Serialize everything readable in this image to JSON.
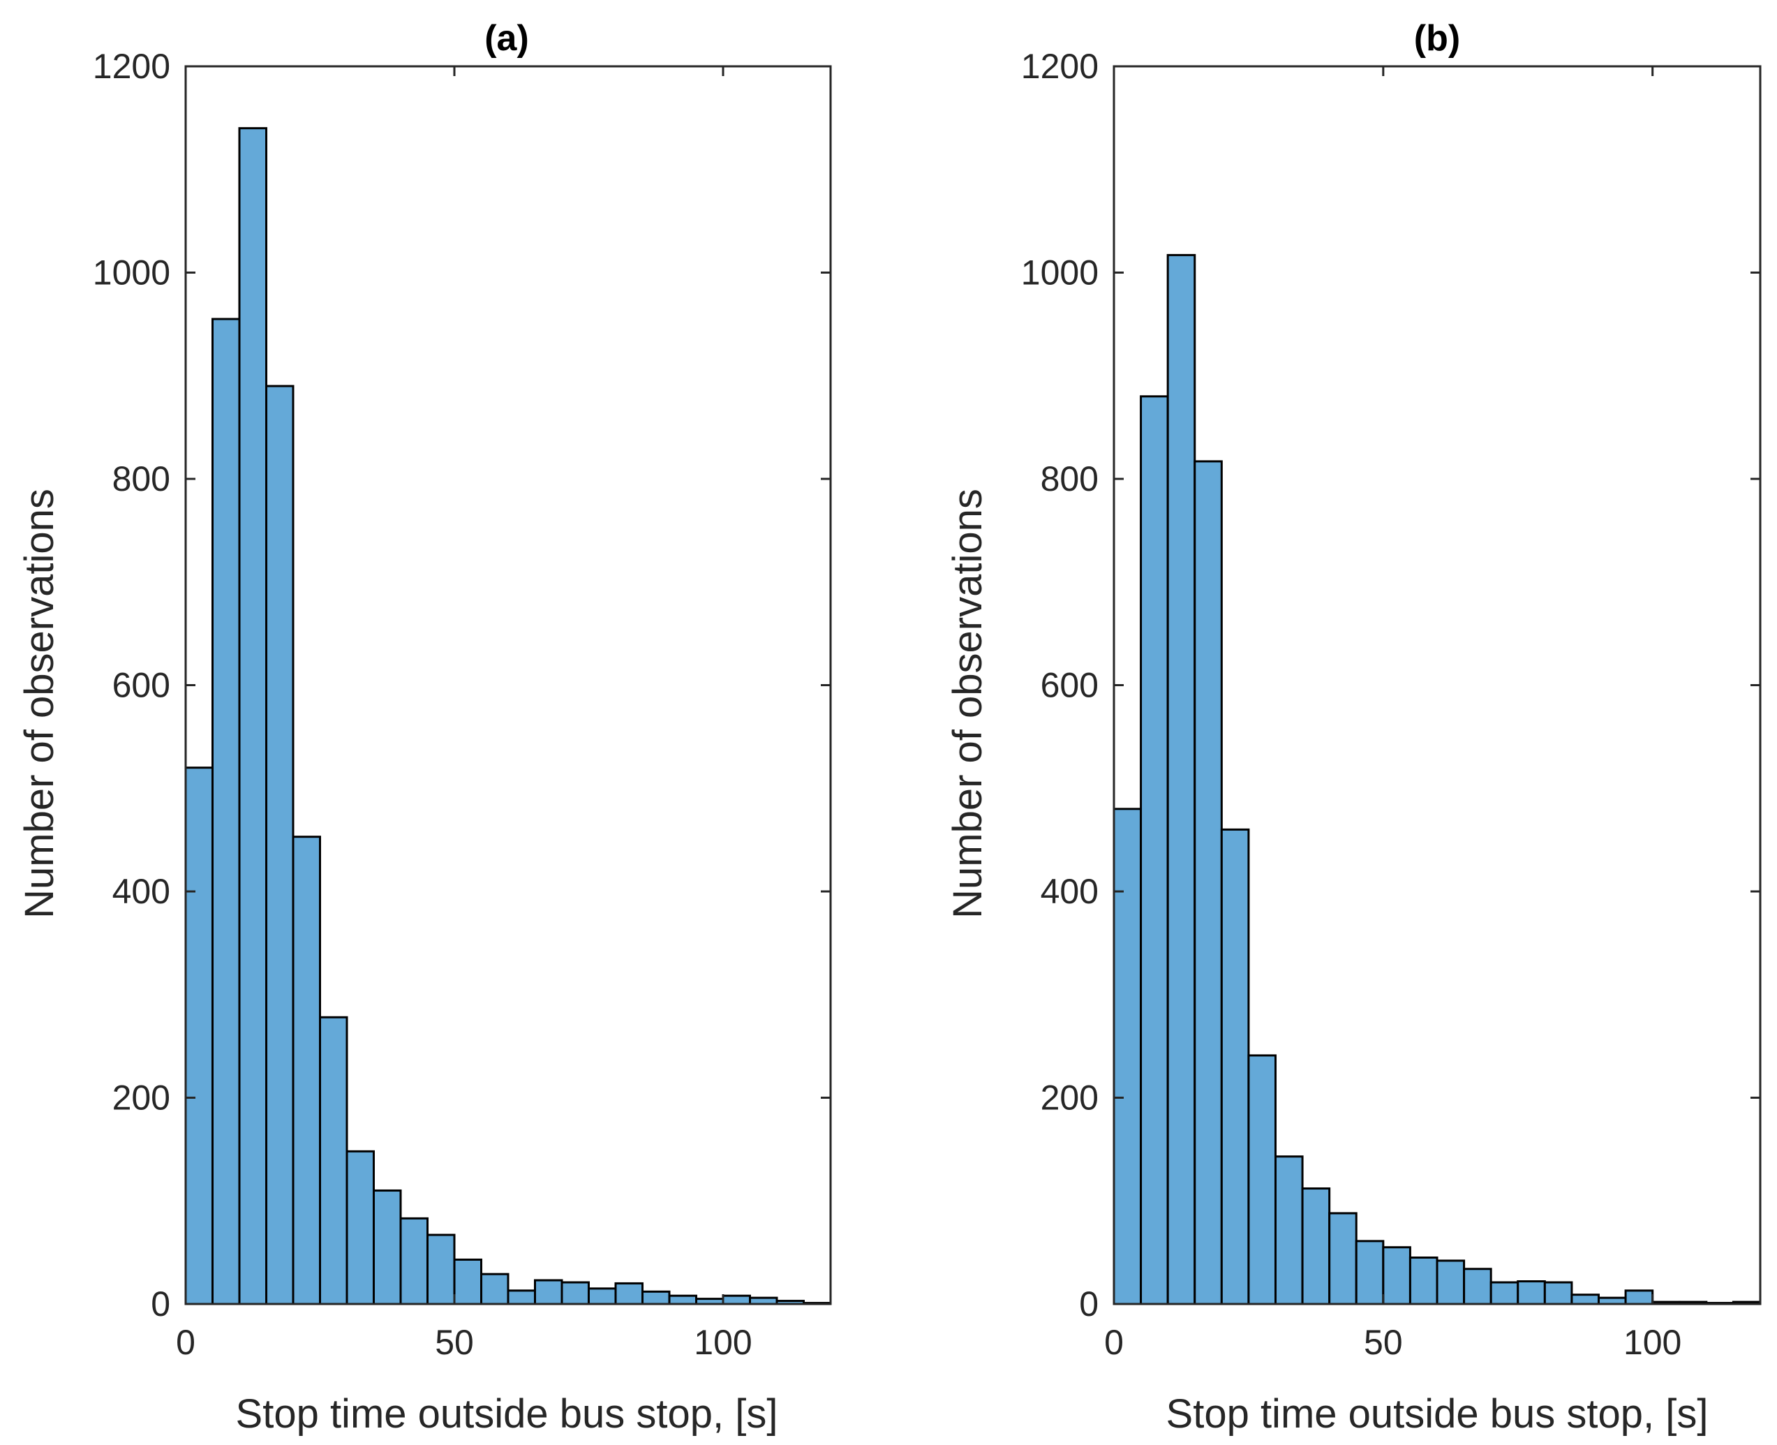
{
  "chart_data": [
    {
      "type": "bar",
      "subtype": "histogram",
      "title": "(a)",
      "xlabel": "Stop time outside bus stop, [s]",
      "ylabel": "Number of observations",
      "xlim": [
        0,
        120
      ],
      "ylim": [
        0,
        1200
      ],
      "xticks": [
        0,
        50,
        100
      ],
      "yticks": [
        0,
        200,
        400,
        600,
        800,
        1000,
        1200
      ],
      "bin_width": 5,
      "bin_edges_start": 0,
      "values": [
        520,
        955,
        1140,
        890,
        453,
        278,
        148,
        110,
        83,
        67,
        43,
        29,
        13,
        23,
        21,
        15,
        20,
        12,
        8,
        5,
        8,
        6,
        3,
        1
      ],
      "grid": false
    },
    {
      "type": "bar",
      "subtype": "histogram",
      "title": "(b)",
      "xlabel": "Stop time outside bus stop, [s]",
      "ylabel": "Number of observations",
      "xlim": [
        0,
        120
      ],
      "ylim": [
        0,
        1200
      ],
      "xticks": [
        0,
        50,
        100
      ],
      "yticks": [
        0,
        200,
        400,
        600,
        800,
        1000,
        1200
      ],
      "bin_width": 5,
      "bin_edges_start": 0,
      "values": [
        480,
        880,
        1017,
        817,
        460,
        241,
        143,
        112,
        88,
        61,
        55,
        45,
        42,
        34,
        21,
        22,
        21,
        9,
        6,
        13,
        2,
        2,
        1,
        2
      ],
      "grid": false
    }
  ],
  "colors": {
    "bar_fill": "#64a9d8",
    "bar_edge": "#000000",
    "axis": "#262626"
  }
}
